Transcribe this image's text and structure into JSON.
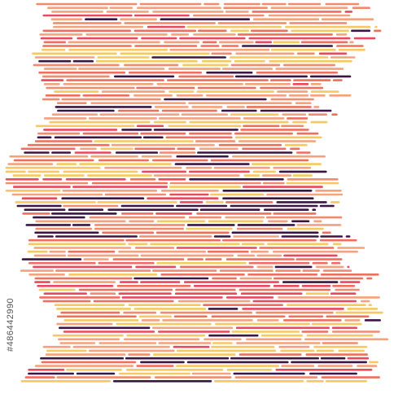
{
  "watermark": {
    "id": "#486442990"
  }
}
